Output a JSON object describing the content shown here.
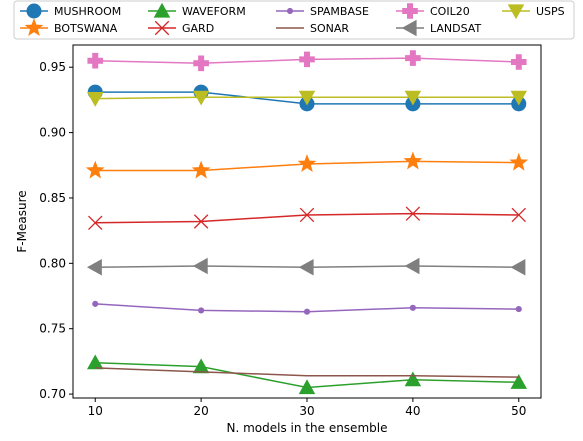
{
  "chart_data": {
    "type": "line",
    "title": "",
    "xlabel": "N. models in the ensemble",
    "ylabel": "F-Measure",
    "x": [
      10,
      20,
      30,
      40,
      50
    ],
    "xlim": [
      7.9,
      52.1
    ],
    "ylim": [
      0.697,
      0.967
    ],
    "xticks": [
      10,
      20,
      30,
      40,
      50
    ],
    "xtick_labels": [
      "10",
      "20",
      "30",
      "40",
      "50"
    ],
    "yticks": [
      0.7,
      0.75,
      0.8,
      0.85,
      0.9,
      0.95
    ],
    "ytick_labels": [
      "0.70",
      "0.75",
      "0.80",
      "0.85",
      "0.90",
      "0.95"
    ],
    "grid": false,
    "legend_position": "top, above plot, 5 columns",
    "series": [
      {
        "name": "MUSHROOM",
        "color": "#1f77b4",
        "marker": "circle",
        "values": [
          0.931,
          0.931,
          0.922,
          0.922,
          0.922
        ]
      },
      {
        "name": "BOTSWANA",
        "color": "#ff7f0e",
        "marker": "star",
        "values": [
          0.871,
          0.871,
          0.876,
          0.878,
          0.877
        ]
      },
      {
        "name": "WAVEFORM",
        "color": "#2ca02c",
        "marker": "triangle-up",
        "values": [
          0.724,
          0.721,
          0.705,
          0.711,
          0.709
        ]
      },
      {
        "name": "GARD",
        "color": "#d62728",
        "marker": "x",
        "values": [
          0.831,
          0.832,
          0.837,
          0.838,
          0.837
        ]
      },
      {
        "name": "SPAMBASE",
        "color": "#9467bd",
        "marker": "small-circle",
        "values": [
          0.769,
          0.764,
          0.763,
          0.766,
          0.765
        ]
      },
      {
        "name": "SONAR",
        "color": "#8c564b",
        "marker": "none",
        "values": [
          0.72,
          0.717,
          0.714,
          0.714,
          0.713
        ]
      },
      {
        "name": "COIL20",
        "color": "#e377c2",
        "marker": "plus",
        "values": [
          0.955,
          0.953,
          0.956,
          0.957,
          0.954
        ]
      },
      {
        "name": "LANDSAT",
        "color": "#7f7f7f",
        "marker": "triangle-left",
        "values": [
          0.797,
          0.798,
          0.797,
          0.798,
          0.797
        ]
      },
      {
        "name": "USPS",
        "color": "#bcbd22",
        "marker": "triangle-down",
        "values": [
          0.926,
          0.927,
          0.927,
          0.927,
          0.927
        ]
      }
    ]
  }
}
